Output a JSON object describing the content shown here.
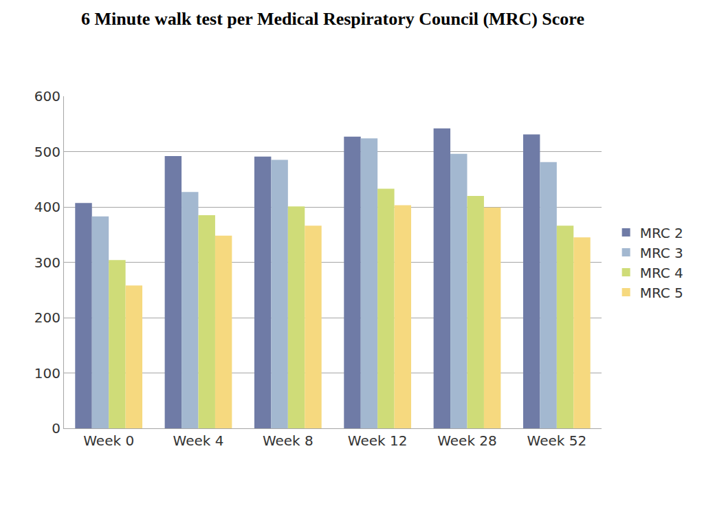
{
  "chart_data": {
    "type": "bar",
    "title": "6 Minute walk test per Medical Respiratory Council (MRC) Score",
    "categories": [
      "Week 0",
      "Week 4",
      "Week 8",
      "Week 12",
      "Week 28",
      "Week 52"
    ],
    "series": [
      {
        "name": "MRC 2",
        "color": "#6f7ba6",
        "values": [
          407,
          492,
          491,
          527,
          542,
          531
        ]
      },
      {
        "name": "MRC 3",
        "color": "#a3b8d0",
        "values": [
          383,
          427,
          485,
          524,
          496,
          481
        ]
      },
      {
        "name": "MRC 4",
        "color": "#cfdc78",
        "values": [
          304,
          385,
          401,
          433,
          420,
          366
        ]
      },
      {
        "name": "MRC 5",
        "color": "#f6d97f",
        "values": [
          258,
          348,
          366,
          403,
          399,
          345
        ]
      }
    ],
    "ylim": [
      0,
      600
    ],
    "yticks": [
      0,
      100,
      200,
      300,
      400,
      500,
      600
    ],
    "grid": true,
    "legend": "right"
  }
}
